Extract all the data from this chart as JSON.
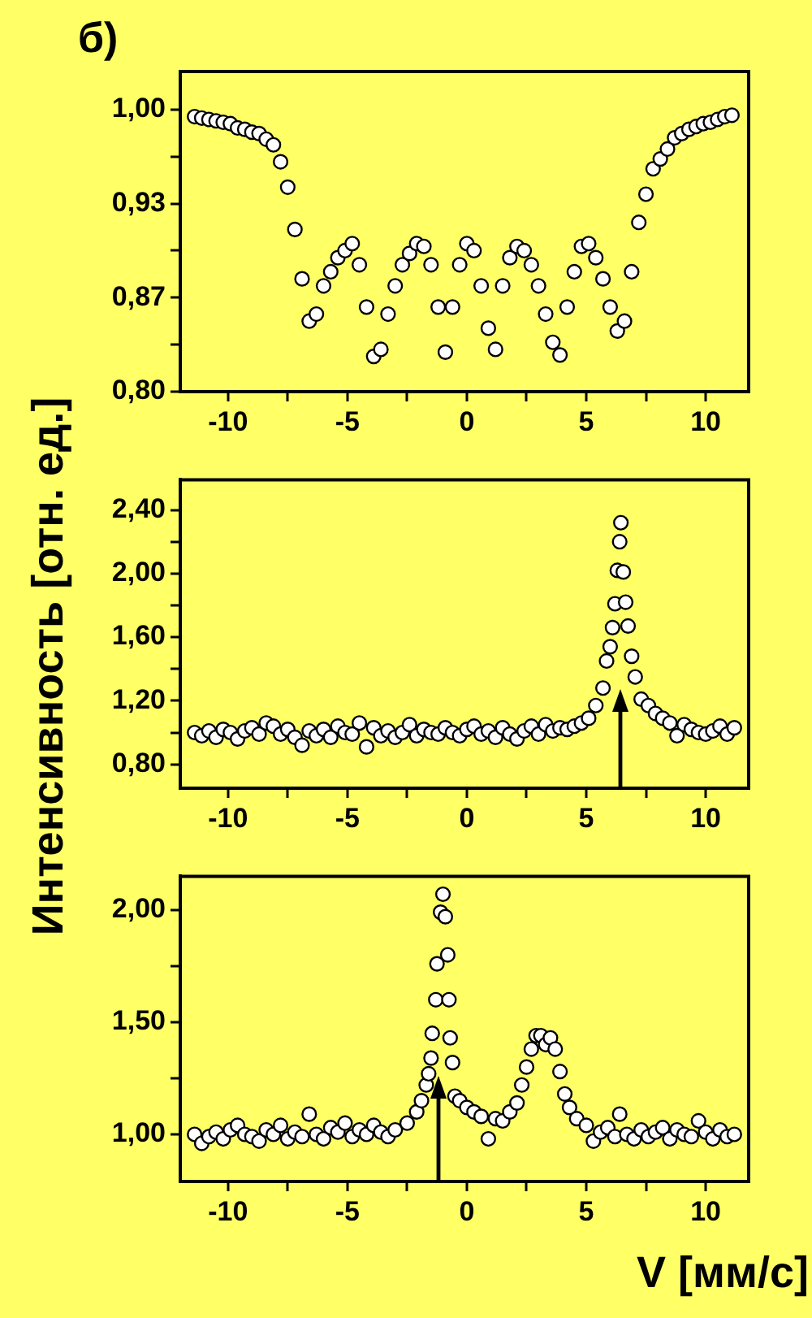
{
  "chart_data": [
    {
      "type": "scatter",
      "title": "б)",
      "marker": "circle",
      "grid": false,
      "legend": false,
      "xlim": [
        -12,
        11.8
      ],
      "ylim": [
        0.8,
        1.027
      ],
      "xticks": [
        -10,
        {
          "value": -7.5,
          "label": null
        },
        -5,
        {
          "value": -2.5,
          "label": null
        },
        0,
        {
          "value": 2.5,
          "label": null
        },
        5,
        {
          "value": 7.5,
          "label": null
        },
        10
      ],
      "yticks": [
        {
          "value": 0.8,
          "label": "0,80"
        },
        {
          "value": 0.8333,
          "label": null
        },
        {
          "value": 0.8667,
          "label": "0,87"
        },
        {
          "value": 0.9,
          "label": null
        },
        {
          "value": 0.9333,
          "label": "0,93"
        },
        {
          "value": 0.9667,
          "label": null
        },
        {
          "value": 1,
          "label": "1,00"
        }
      ],
      "series": [
        {
          "color": "#ffffff",
          "x": [
            -11.4,
            -11.1,
            -10.8,
            -10.5,
            -10.2,
            -9.9,
            -9.6,
            -9.3,
            -9.0,
            -8.7,
            -8.4,
            -8.1,
            -7.8,
            -7.5,
            -7.2,
            -6.9,
            -6.6,
            -6.3,
            -6.0,
            -5.7,
            -5.4,
            -5.1,
            -4.8,
            -4.5,
            -4.2,
            -3.9,
            -3.6,
            -3.3,
            -3.0,
            -2.7,
            -2.4,
            -2.1,
            -1.8,
            -1.5,
            -1.2,
            -0.9,
            -0.6,
            -0.3,
            0.0,
            0.3,
            0.6,
            0.9,
            1.2,
            1.5,
            1.8,
            2.1,
            2.4,
            2.7,
            3.0,
            3.3,
            3.6,
            3.9,
            4.2,
            4.5,
            4.8,
            5.1,
            5.4,
            5.7,
            6.0,
            6.3,
            6.6,
            6.9,
            7.2,
            7.5,
            7.8,
            8.1,
            8.4,
            8.7,
            9.0,
            9.3,
            9.6,
            9.9,
            10.2,
            10.5,
            10.8,
            11.1
          ],
          "values": [
            0.995,
            0.994,
            0.993,
            0.992,
            0.991,
            0.99,
            0.987,
            0.986,
            0.984,
            0.983,
            0.979,
            0.975,
            0.963,
            0.945,
            0.915,
            0.88,
            0.85,
            0.855,
            0.875,
            0.885,
            0.895,
            0.9,
            0.905,
            0.89,
            0.86,
            0.825,
            0.83,
            0.855,
            0.875,
            0.89,
            0.898,
            0.905,
            0.903,
            0.89,
            0.86,
            0.828,
            0.86,
            0.89,
            0.905,
            0.9,
            0.875,
            0.845,
            0.83,
            0.875,
            0.895,
            0.903,
            0.9,
            0.89,
            0.875,
            0.855,
            0.835,
            0.826,
            0.86,
            0.885,
            0.903,
            0.905,
            0.895,
            0.88,
            0.86,
            0.843,
            0.85,
            0.885,
            0.92,
            0.94,
            0.958,
            0.965,
            0.972,
            0.98,
            0.983,
            0.986,
            0.988,
            0.99,
            0.991,
            0.993,
            0.995,
            0.996
          ]
        }
      ]
    },
    {
      "type": "scatter",
      "ylabel": "Интенсивность [отн. ед.]",
      "marker": "circle",
      "grid": false,
      "legend": false,
      "xlim": [
        -12,
        11.8
      ],
      "ylim": [
        0.65,
        2.59
      ],
      "xticks": [
        -10,
        {
          "value": -7.5,
          "label": null
        },
        -5,
        {
          "value": -2.5,
          "label": null
        },
        0,
        {
          "value": 2.5,
          "label": null
        },
        5,
        {
          "value": 7.5,
          "label": null
        },
        10
      ],
      "yticks": [
        {
          "value": 0.8,
          "label": "0,80"
        },
        {
          "value": 1.0,
          "label": null
        },
        {
          "value": 1.2,
          "label": "1,20"
        },
        {
          "value": 1.4,
          "label": null
        },
        {
          "value": 1.6,
          "label": "1,60"
        },
        {
          "value": 1.8,
          "label": null
        },
        {
          "value": 2.0,
          "label": "2,00"
        },
        {
          "value": 2.2,
          "label": null
        },
        {
          "value": 2.4,
          "label": "2,40"
        }
      ],
      "series": [
        {
          "color": "#ffffff",
          "x": [
            -11.4,
            -11.1,
            -10.8,
            -10.5,
            -10.2,
            -9.9,
            -9.6,
            -9.3,
            -9.0,
            -8.7,
            -8.4,
            -8.1,
            -7.8,
            -7.5,
            -7.2,
            -6.9,
            -6.6,
            -6.3,
            -6.0,
            -5.7,
            -5.4,
            -5.1,
            -4.8,
            -4.5,
            -4.2,
            -3.9,
            -3.6,
            -3.3,
            -3.0,
            -2.7,
            -2.4,
            -2.1,
            -1.8,
            -1.5,
            -1.2,
            -0.9,
            -0.6,
            -0.3,
            0.0,
            0.3,
            0.6,
            0.9,
            1.2,
            1.5,
            1.8,
            2.1,
            2.4,
            2.7,
            3.0,
            3.3,
            3.6,
            3.9,
            4.2,
            4.5,
            4.8,
            5.1,
            5.4,
            5.7,
            5.85,
            6.0,
            6.1,
            6.2,
            6.3,
            6.4,
            6.45,
            6.55,
            6.65,
            6.75,
            6.9,
            7.05,
            7.3,
            7.6,
            7.9,
            8.2,
            8.5,
            8.8,
            9.1,
            9.4,
            9.7,
            10.0,
            10.3,
            10.6,
            10.9,
            11.2
          ],
          "values": [
            1.0,
            0.98,
            1.01,
            0.97,
            1.02,
            1.0,
            0.96,
            1.01,
            1.03,
            0.99,
            1.06,
            1.04,
            0.99,
            1.02,
            0.97,
            0.92,
            1.01,
            0.98,
            1.02,
            0.97,
            1.04,
            1.0,
            0.99,
            1.06,
            0.91,
            1.03,
            0.98,
            1.01,
            0.97,
            1.0,
            1.05,
            0.98,
            1.02,
            1.0,
            0.99,
            1.03,
            1.0,
            0.98,
            1.02,
            1.04,
            0.99,
            1.01,
            0.97,
            1.03,
            0.99,
            0.96,
            1.01,
            1.04,
            0.99,
            1.05,
            1.01,
            1.03,
            1.02,
            1.04,
            1.06,
            1.09,
            1.17,
            1.28,
            1.45,
            1.54,
            1.66,
            1.81,
            2.02,
            2.2,
            2.32,
            2.01,
            1.82,
            1.67,
            1.48,
            1.35,
            1.21,
            1.17,
            1.12,
            1.09,
            1.06,
            0.98,
            1.05,
            1.02,
            1.0,
            0.99,
            1.01,
            1.04,
            0.99,
            1.03
          ]
        }
      ]
    },
    {
      "type": "scatter",
      "xlabel": "V [мм/с]",
      "marker": "circle",
      "grid": false,
      "legend": false,
      "xlim": [
        -12,
        11.8
      ],
      "ylim": [
        0.79,
        2.15
      ],
      "xticks": [
        -10,
        {
          "value": -7.5,
          "label": null
        },
        -5,
        {
          "value": -2.5,
          "label": null
        },
        0,
        {
          "value": 2.5,
          "label": null
        },
        5,
        {
          "value": 7.5,
          "label": null
        },
        10
      ],
      "yticks": [
        {
          "value": 1.0,
          "label": "1,00"
        },
        {
          "value": 1.25,
          "label": null
        },
        {
          "value": 1.5,
          "label": "1,50"
        },
        {
          "value": 1.75,
          "label": null
        },
        {
          "value": 2.0,
          "label": "2,00"
        }
      ],
      "series": [
        {
          "color": "#ffffff",
          "x": [
            -11.4,
            -11.1,
            -10.8,
            -10.5,
            -10.2,
            -9.9,
            -9.6,
            -9.3,
            -9.0,
            -8.7,
            -8.4,
            -8.1,
            -7.8,
            -7.5,
            -7.2,
            -6.9,
            -6.6,
            -6.3,
            -6.0,
            -5.7,
            -5.4,
            -5.1,
            -4.8,
            -4.5,
            -4.2,
            -3.9,
            -3.6,
            -3.3,
            -3.0,
            -2.5,
            -2.1,
            -1.9,
            -1.7,
            -1.6,
            -1.5,
            -1.45,
            -1.3,
            -1.25,
            -1.1,
            -1.0,
            -0.9,
            -0.8,
            -0.75,
            -0.7,
            -0.6,
            -0.5,
            -0.3,
            0.0,
            0.3,
            0.6,
            0.9,
            1.2,
            1.5,
            1.8,
            2.1,
            2.3,
            2.5,
            2.7,
            2.9,
            3.1,
            3.3,
            3.5,
            3.7,
            3.9,
            4.1,
            4.3,
            4.6,
            5.0,
            5.3,
            5.6,
            5.9,
            6.2,
            6.4,
            6.7,
            7.0,
            7.3,
            7.6,
            7.9,
            8.2,
            8.5,
            8.8,
            9.1,
            9.4,
            9.7,
            10.0,
            10.3,
            10.6,
            10.9,
            11.2
          ],
          "values": [
            1.0,
            0.96,
            0.99,
            1.01,
            0.98,
            1.02,
            1.04,
            1.0,
            0.99,
            0.97,
            1.02,
            1.0,
            1.04,
            0.98,
            1.01,
            0.99,
            1.09,
            1.0,
            0.98,
            1.03,
            1.01,
            1.05,
            0.99,
            1.02,
            1.0,
            1.04,
            1.01,
            0.99,
            1.02,
            1.05,
            1.1,
            1.15,
            1.22,
            1.27,
            1.34,
            1.45,
            1.6,
            1.76,
            1.99,
            2.07,
            1.97,
            1.8,
            1.6,
            1.43,
            1.32,
            1.17,
            1.15,
            1.12,
            1.1,
            1.08,
            0.98,
            1.07,
            1.06,
            1.1,
            1.14,
            1.22,
            1.3,
            1.38,
            1.44,
            1.44,
            1.4,
            1.43,
            1.38,
            1.28,
            1.18,
            1.12,
            1.07,
            1.04,
            0.97,
            1.01,
            1.03,
            0.99,
            1.09,
            1.0,
            0.98,
            1.02,
            0.99,
            1.01,
            1.03,
            0.98,
            1.02,
            1.0,
            0.99,
            1.06,
            1.01,
            0.98,
            1.02,
            0.99,
            1.0
          ]
        }
      ]
    }
  ]
}
